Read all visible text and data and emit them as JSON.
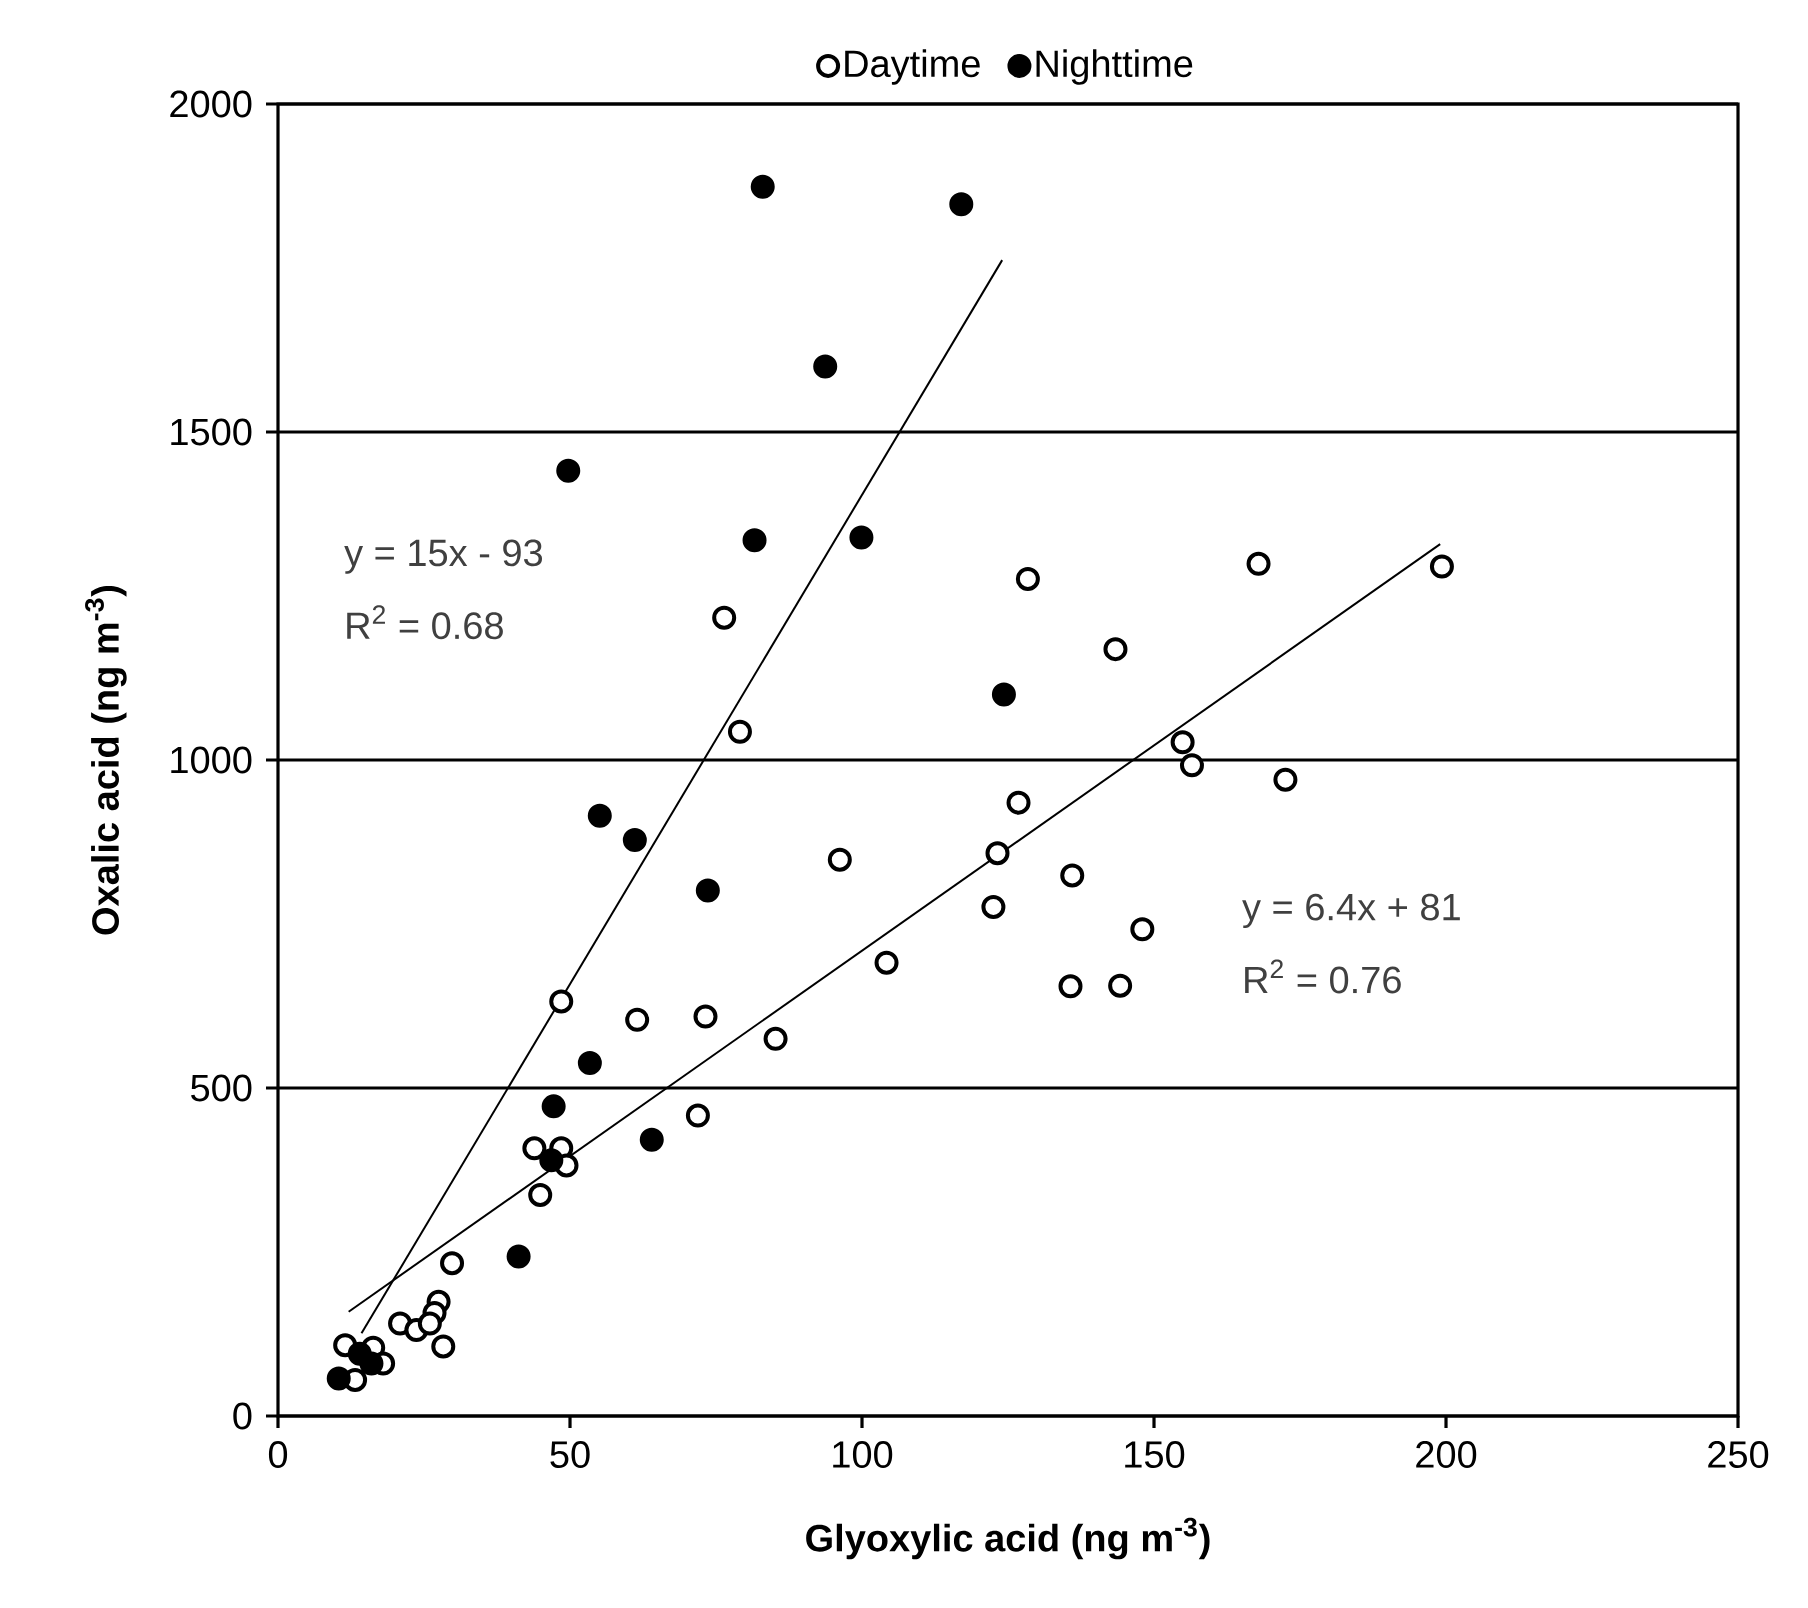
{
  "chart_data": {
    "type": "scatter",
    "xlabel": "Glyoxylic acid (ng m$^{-3}$)",
    "ylabel": "Oxalic acid (ng m$^{-3}$)",
    "xlim": [
      0,
      250
    ],
    "xticks": [
      0,
      50,
      100,
      150,
      200,
      250
    ],
    "ylim": [
      0,
      2000
    ],
    "yticks": [
      0,
      500,
      1000,
      1500,
      2000
    ],
    "grid": "y",
    "legend": "top",
    "series": [
      {
        "name": "Daytime",
        "marker": "circle",
        "color": "#000000",
        "x": [
          76.4,
          128.4,
          167.9,
          199.3,
          143.4,
          79.1,
          154.9,
          156.5,
          172.5,
          126.8,
          96.2,
          123.2,
          136.0,
          122.5,
          148.0,
          104.2,
          135.7,
          144.2,
          73.2,
          85.2,
          71.9,
          48.5,
          61.5,
          43.9,
          48.5,
          49.4,
          44.9,
          29.8,
          27.5,
          26.8,
          20.9,
          23.7,
          26.0,
          28.3,
          11.5,
          16.3,
          18.0,
          13.2
        ],
        "values": [
          1217,
          1276,
          1299,
          1295,
          1169,
          1043,
          1027,
          992,
          970,
          935,
          848,
          858,
          824,
          776,
          742,
          691,
          655,
          656,
          609,
          575,
          458,
          632,
          604,
          408,
          408,
          382,
          337,
          233,
          174,
          157,
          141,
          131,
          141,
          106,
          108,
          104,
          80,
          55
        ]
      },
      {
        "name": "Nighttime",
        "marker": "circle",
        "color": "#000000",
        "x": [
          83.0,
          117.0,
          93.7,
          49.7,
          81.6,
          99.9,
          124.3,
          55.1,
          61.1,
          73.6,
          53.4,
          47.2,
          64.0,
          46.8,
          41.2,
          10.4,
          14.0,
          16.0
        ],
        "values": [
          1874,
          1847,
          1600,
          1441,
          1335,
          1339,
          1100,
          915,
          878,
          801,
          538,
          472,
          421,
          390,
          243,
          57,
          95,
          80
        ]
      },
      {
        "type": "line",
        "marker": "none",
        "color": "#000000",
        "x": [
          14.3,
          124
        ],
        "values": [
          126,
          1762
        ]
      },
      {
        "type": "line",
        "marker": "none",
        "color": "#000000",
        "x": [
          12.1,
          199
        ],
        "values": [
          159,
          1329
        ]
      }
    ],
    "annotations": [
      "y = 15x - 93",
      "R$^{2}$ = 0.68",
      "y = 6.4x + 81",
      "R$^{2}$ = 0.76"
    ]
  }
}
